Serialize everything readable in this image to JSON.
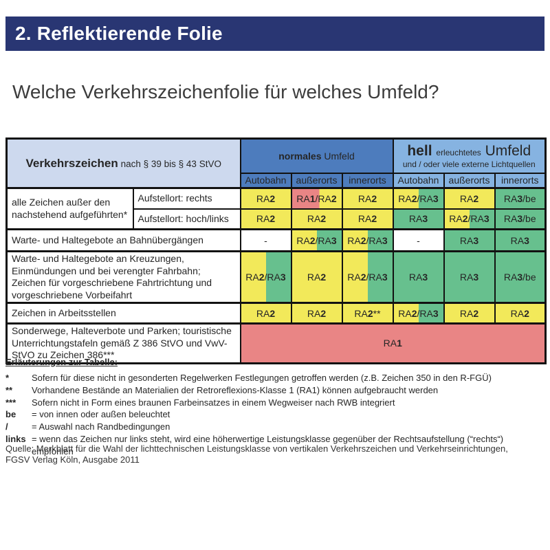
{
  "page": {
    "header_title": "2. Reflektierende Folie",
    "question_title": "Welche Verkehrszeichenfolie für welches Umfeld?"
  },
  "colors": {
    "header_bar": "#293673",
    "table_border": "#121212",
    "blue_mid": "#4d7cbd",
    "blue_light": "#86b3e1",
    "blue_pale": "#cdd9ee",
    "yellow": "#f2e95a",
    "green": "#67c08e",
    "red": "#e98585"
  },
  "table": {
    "header": {
      "title_bold": "Verkehrszeichen",
      "title_rest": "nach § 39 bis § 43 StVO",
      "normal_bold": "normales",
      "normal_rest": "Umfeld",
      "hell_bold": "hell",
      "hell_mid": "erleuchtetes",
      "hell_rest": "Umfeld",
      "hell_line2": "und / oder viele externe Lichtquellen",
      "subcols": [
        "Autobahn",
        "außerorts",
        "innerorts",
        "Autobahn",
        "außerorts",
        "innerorts"
      ]
    },
    "rows": [
      {
        "label_main": "alle Zeichen außer den nachstehend aufgeführten*",
        "label_sub": "Aufstellort: rechts",
        "cells": [
          {
            "text": "RA2",
            "color": "yellow"
          },
          {
            "text": "RA1/RA2",
            "color": "red_yellow"
          },
          {
            "text": "RA2",
            "color": "yellow"
          },
          {
            "text": "RA2/RA3",
            "color": "yellow_green"
          },
          {
            "text": "RA2",
            "color": "yellow"
          },
          {
            "text": "RA3/be",
            "color": "green"
          }
        ]
      },
      {
        "label_sub": "Aufstellort: hoch/links",
        "cells": [
          {
            "text": "RA2",
            "color": "yellow"
          },
          {
            "text": "RA2",
            "color": "yellow"
          },
          {
            "text": "RA2",
            "color": "yellow"
          },
          {
            "text": "RA3",
            "color": "green"
          },
          {
            "text": "RA2/RA3",
            "color": "yellow_green"
          },
          {
            "text": "RA3/be",
            "color": "green"
          }
        ]
      },
      {
        "label": "Warte- und Haltegebote an Bahnübergängen",
        "cells": [
          {
            "text": "-",
            "color": "white"
          },
          {
            "text": "RA2/RA3",
            "color": "yellow_green"
          },
          {
            "text": "RA2/RA3",
            "color": "yellow_green"
          },
          {
            "text": "-",
            "color": "white"
          },
          {
            "text": "RA3",
            "color": "green"
          },
          {
            "text": "RA3",
            "color": "green"
          }
        ]
      },
      {
        "label": "Warte- und Haltegebote an Kreuzungen, Einmündungen und bei verengter Fahrbahn; Zeichen für vorgeschriebene Fahrtrichtung und vorgeschriebene Vorbeifahrt",
        "cells": [
          {
            "text": "RA2/RA3",
            "color": "yellow_green"
          },
          {
            "text": "RA2",
            "color": "yellow"
          },
          {
            "text": "RA2/RA3",
            "color": "yellow_green"
          },
          {
            "text": "RA3",
            "color": "green"
          },
          {
            "text": "RA3",
            "color": "green"
          },
          {
            "text": "RA3/be",
            "color": "green"
          }
        ]
      },
      {
        "label": "Zeichen in Arbeitsstellen",
        "cells": [
          {
            "text": "RA2",
            "color": "yellow"
          },
          {
            "text": "RA2",
            "color": "yellow"
          },
          {
            "text": "RA2**",
            "color": "yellow"
          },
          {
            "text": "RA2/RA3",
            "color": "yellow_green"
          },
          {
            "text": "RA2",
            "color": "yellow"
          },
          {
            "text": "RA2",
            "color": "yellow"
          }
        ]
      },
      {
        "label": "Sonderwege, Halteverbote und Parken; touristische Unterrichtungstafeln gemäß Z 386 StVO und VwV-StVO zu Zeichen 386***",
        "cells": [
          {
            "text": "RA1",
            "color": "red",
            "colspan": 6
          }
        ]
      }
    ]
  },
  "footnotes": {
    "heading": "Erläuterungen zur Tabelle:",
    "items": [
      {
        "symbol": "*",
        "text": "Sofern für diese nicht in gesonderten Regelwerken Festlegungen getroffen werden (z.B. Zeichen 350 in den R-FGÜ)"
      },
      {
        "symbol": "**",
        "text": "Vorhandene Bestände an Materialien der Retroreflexions-Klasse 1 (RA1) können aufgebraucht werden"
      },
      {
        "symbol": "***",
        "text": "Sofern nicht in Form eines braunen Farbeinsatzes in einem Wegweiser nach RWB integriert"
      },
      {
        "symbol": "be",
        "text": "= von innen oder außen beleuchtet"
      },
      {
        "symbol": "/",
        "text": "= Auswahl nach Randbedingungen"
      },
      {
        "symbol": "links",
        "text": "= wenn das Zeichen nur links steht, wird eine höherwertige Leistungsklasse gegenüber der Rechtsaufstellung (“rechts“) empfohlen"
      }
    ]
  },
  "source": {
    "line1": "Quelle: Merkblatt für die Wahl der lichttechnischen Leistungsklasse von vertikalen Verkehrszeichen und Verkehrseinrichtungen,",
    "line2": "FGSV Verlag Köln, Ausgabe 2011"
  }
}
